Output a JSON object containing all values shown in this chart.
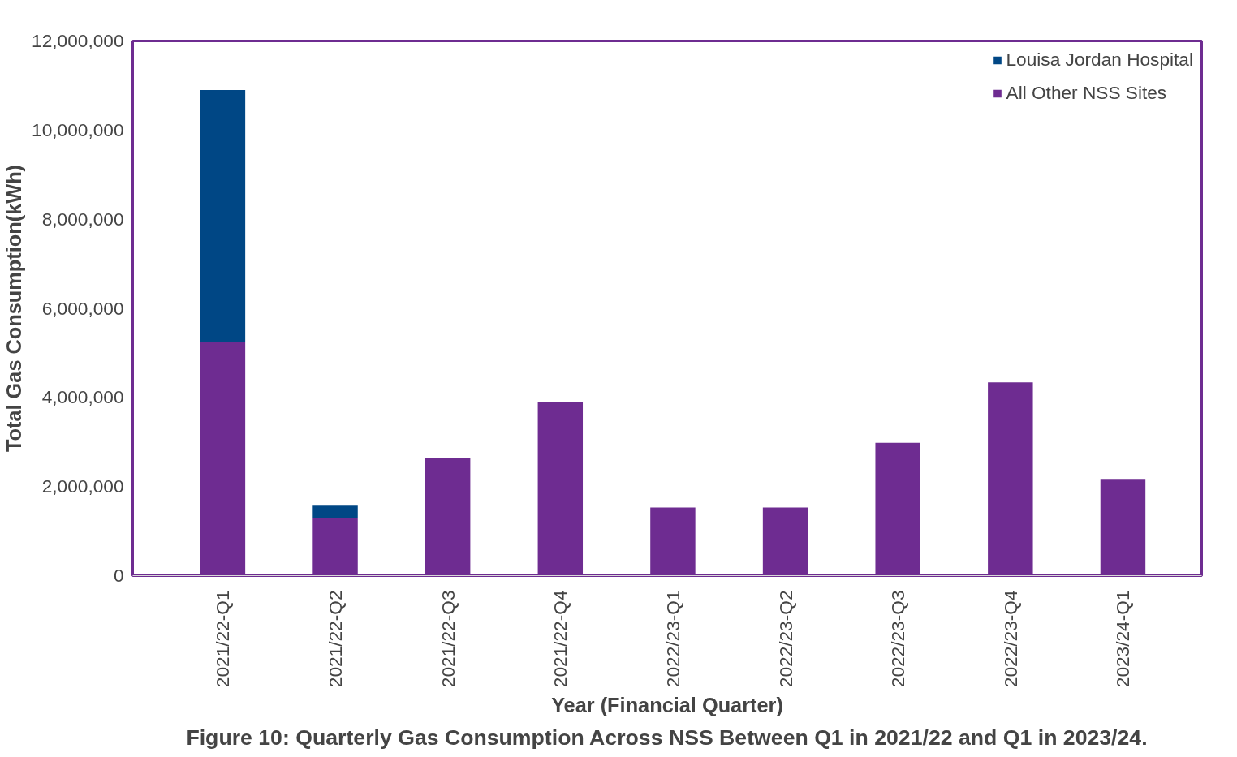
{
  "chart_data": {
    "type": "bar",
    "stacked": true,
    "categories": [
      "2021/22-Q1",
      "2021/22-Q2",
      "2021/22-Q3",
      "2021/22-Q4",
      "2022/23-Q1",
      "2022/23-Q2",
      "2022/23-Q3",
      "2022/23-Q4",
      "2023/24-Q1"
    ],
    "series": [
      {
        "name": "All Other NSS Sites",
        "color": "#6e2c91",
        "values": [
          5250000,
          1300000,
          2640000,
          3900000,
          1530000,
          1530000,
          2980000,
          4340000,
          2170000
        ]
      },
      {
        "name": "Louisa Jordan Hospital",
        "color": "#004785",
        "values": [
          5650000,
          270000,
          null,
          null,
          null,
          null,
          null,
          null,
          null
        ]
      }
    ],
    "ylim": [
      0,
      12000000
    ],
    "yticks": [
      {
        "value": 0,
        "label": "0"
      },
      {
        "value": 2000000,
        "label": "2,000,000"
      },
      {
        "value": 4000000,
        "label": "4,000,000"
      },
      {
        "value": 6000000,
        "label": "6,000,000"
      },
      {
        "value": 8000000,
        "label": "8,000,000"
      },
      {
        "value": 10000000,
        "label": "10,000,000"
      },
      {
        "value": 12000000,
        "label": "12,000,000"
      }
    ],
    "xlabel": "Year (Financial Quarter)",
    "ylabel": "Total Gas Consumption(kWh)",
    "legend": "top right",
    "grid": false,
    "annotations": [
      "Figure 10: Quarterly Gas Consumption Across NSS Between Q1 in 2021/22 and Q1 in 2023/24."
    ]
  }
}
